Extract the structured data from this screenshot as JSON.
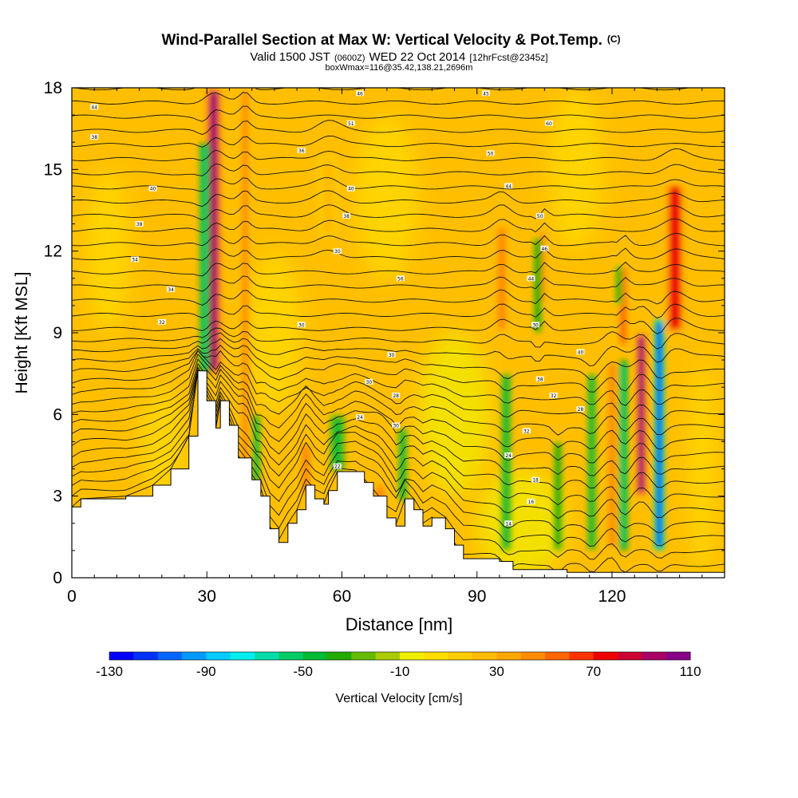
{
  "chart_data": {
    "type": "heatmap",
    "title": "Wind-Parallel Section at Max W: Vertical Velocity & Pot.Temp.",
    "title_suffix": "(C)",
    "subtitle_valid": "Valid 1500 JST",
    "subtitle_zulu": "(0600Z)",
    "subtitle_date": "WED 22 Oct 2014",
    "subtitle_fcst": "[12hrFcst@2345z]",
    "subtitle_box": "boxWmax=116@35.42,138.21,2696m",
    "xlabel": "Distance [nm]",
    "ylabel": "Height [Kft MSL]",
    "xlim": [
      0,
      145
    ],
    "ylim": [
      0,
      18
    ],
    "xticks": [
      0,
      30,
      60,
      90,
      120
    ],
    "yticks": [
      0,
      3,
      6,
      9,
      12,
      15,
      18
    ],
    "colorbar": {
      "label": "Vertical Velocity [cm/s]",
      "range": [
        -130,
        110
      ],
      "step": 10,
      "tick_values": [
        -130,
        -90,
        -50,
        -10,
        30,
        70,
        110
      ],
      "colors": [
        "#0000ff",
        "#0033ff",
        "#0066ff",
        "#0099ff",
        "#00ccff",
        "#00eeee",
        "#00ddaa",
        "#00cc66",
        "#00bb33",
        "#22aa00",
        "#66bb00",
        "#aacc00",
        "#eeee00",
        "#ffdd00",
        "#ffcc00",
        "#ffbb00",
        "#ffa500",
        "#ff8c00",
        "#ff6600",
        "#ff3300",
        "#ee0000",
        "#cc0033",
        "#aa0066",
        "#880088"
      ]
    },
    "terrain": [
      [
        0,
        2.6
      ],
      [
        2,
        2.9
      ],
      [
        12,
        3.0
      ],
      [
        18,
        3.4
      ],
      [
        22,
        4.0
      ],
      [
        26,
        5.2
      ],
      [
        28,
        7.6
      ],
      [
        30,
        6.5
      ],
      [
        32,
        5.5
      ],
      [
        33,
        6.5
      ],
      [
        35,
        5.6
      ],
      [
        37,
        4.4
      ],
      [
        40,
        3.6
      ],
      [
        42,
        3.0
      ],
      [
        44,
        1.8
      ],
      [
        46,
        1.3
      ],
      [
        48,
        2.0
      ],
      [
        50,
        2.5
      ],
      [
        52,
        3.4
      ],
      [
        54,
        2.9
      ],
      [
        56,
        2.7
      ],
      [
        57,
        3.2
      ],
      [
        59,
        3.9
      ],
      [
        63,
        3.9
      ],
      [
        65,
        3.5
      ],
      [
        67,
        3.0
      ],
      [
        70,
        2.2
      ],
      [
        72,
        1.9
      ],
      [
        74,
        2.9
      ],
      [
        76,
        2.5
      ],
      [
        78,
        1.9
      ],
      [
        80,
        2.2
      ],
      [
        83,
        1.8
      ],
      [
        85,
        1.2
      ],
      [
        87,
        0.7
      ],
      [
        95,
        0.6
      ],
      [
        98,
        0.3
      ],
      [
        110,
        0.2
      ],
      [
        145,
        0.2
      ]
    ],
    "updrafts": [
      {
        "x": 31.5,
        "y0": 7.5,
        "y1": 18,
        "w": 2.0,
        "value": 90
      },
      {
        "x": 38.5,
        "y0": 4.0,
        "y1": 18,
        "w": 1.2,
        "value": 40
      },
      {
        "x": 52.0,
        "y0": 3.0,
        "y1": 5.0,
        "w": 1.8,
        "value": 40
      },
      {
        "x": 57.0,
        "y0": 12.5,
        "y1": 15.5,
        "w": 2.5,
        "value": 25
      },
      {
        "x": 68.5,
        "y0": 2.0,
        "y1": 3.5,
        "w": 2.0,
        "value": 40
      },
      {
        "x": 95.5,
        "y0": 9.0,
        "y1": 13.0,
        "w": 1.8,
        "value": 45
      },
      {
        "x": 104.5,
        "y0": 10.0,
        "y1": 12.8,
        "w": 1.2,
        "value": 45
      },
      {
        "x": 120.0,
        "y0": 1.0,
        "y1": 8.0,
        "w": 1.5,
        "value": 40
      },
      {
        "x": 122.5,
        "y0": 8.5,
        "y1": 11.5,
        "w": 1.2,
        "value": 55
      },
      {
        "x": 126.5,
        "y0": 3.0,
        "y1": 9.0,
        "w": 1.5,
        "value": 90
      },
      {
        "x": 134.0,
        "y0": 9.0,
        "y1": 14.5,
        "w": 2.5,
        "value": 70
      }
    ],
    "downdrafts": [
      {
        "x": 29.5,
        "y0": 7.5,
        "y1": 16.0,
        "w": 1.3,
        "value": -60
      },
      {
        "x": 41.0,
        "y0": 3.5,
        "y1": 6.0,
        "w": 0.9,
        "value": -50
      },
      {
        "x": 59.0,
        "y0": 3.9,
        "y1": 6.0,
        "w": 2.0,
        "value": -45
      },
      {
        "x": 73.5,
        "y0": 2.8,
        "y1": 5.5,
        "w": 1.2,
        "value": -45
      },
      {
        "x": 96.5,
        "y0": 1.0,
        "y1": 7.5,
        "w": 1.3,
        "value": -50
      },
      {
        "x": 103.5,
        "y0": 9.0,
        "y1": 12.5,
        "w": 0.6,
        "value": -40
      },
      {
        "x": 108.0,
        "y0": 1.0,
        "y1": 5.0,
        "w": 1.0,
        "value": -40
      },
      {
        "x": 115.5,
        "y0": 1.0,
        "y1": 7.5,
        "w": 1.2,
        "value": -45
      },
      {
        "x": 122.5,
        "y0": 1.0,
        "y1": 8.0,
        "w": 1.2,
        "value": -55
      },
      {
        "x": 121.5,
        "y0": 10.0,
        "y1": 11.5,
        "w": 0.4,
        "value": -35
      },
      {
        "x": 130.5,
        "y0": 1.0,
        "y1": 9.5,
        "w": 1.3,
        "value": -110
      }
    ],
    "contour_labels": [
      {
        "x": 5,
        "y": 17.3,
        "text": "44"
      },
      {
        "x": 5,
        "y": 16.2,
        "text": "38"
      },
      {
        "x": 18,
        "y": 14.3,
        "text": "40"
      },
      {
        "x": 15,
        "y": 13.0,
        "text": "38"
      },
      {
        "x": 14,
        "y": 11.7,
        "text": "34"
      },
      {
        "x": 22,
        "y": 10.6,
        "text": "34"
      },
      {
        "x": 20,
        "y": 9.4,
        "text": "32"
      },
      {
        "x": 51,
        "y": 15.7,
        "text": "36"
      },
      {
        "x": 64,
        "y": 17.8,
        "text": "46"
      },
      {
        "x": 62,
        "y": 16.7,
        "text": "51"
      },
      {
        "x": 62,
        "y": 14.3,
        "text": "40"
      },
      {
        "x": 61,
        "y": 13.3,
        "text": "38"
      },
      {
        "x": 59,
        "y": 12.0,
        "text": "30"
      },
      {
        "x": 73,
        "y": 11.0,
        "text": "56"
      },
      {
        "x": 51,
        "y": 9.3,
        "text": "30"
      },
      {
        "x": 71,
        "y": 8.2,
        "text": "30"
      },
      {
        "x": 66,
        "y": 7.2,
        "text": "30"
      },
      {
        "x": 72,
        "y": 6.7,
        "text": "28"
      },
      {
        "x": 64,
        "y": 5.9,
        "text": "24"
      },
      {
        "x": 72,
        "y": 5.6,
        "text": "30"
      },
      {
        "x": 59,
        "y": 4.1,
        "text": "22"
      },
      {
        "x": 92,
        "y": 17.8,
        "text": "45"
      },
      {
        "x": 106,
        "y": 16.7,
        "text": "60"
      },
      {
        "x": 93,
        "y": 15.6,
        "text": "50"
      },
      {
        "x": 97,
        "y": 14.4,
        "text": "44"
      },
      {
        "x": 104,
        "y": 13.3,
        "text": "50"
      },
      {
        "x": 105,
        "y": 12.1,
        "text": "46"
      },
      {
        "x": 102,
        "y": 11.0,
        "text": "44"
      },
      {
        "x": 103,
        "y": 9.3,
        "text": "30"
      },
      {
        "x": 113,
        "y": 8.3,
        "text": "40"
      },
      {
        "x": 104,
        "y": 7.3,
        "text": "38"
      },
      {
        "x": 107,
        "y": 6.7,
        "text": "32"
      },
      {
        "x": 113,
        "y": 6.2,
        "text": "28"
      },
      {
        "x": 101,
        "y": 5.4,
        "text": "32"
      },
      {
        "x": 97,
        "y": 4.5,
        "text": "24"
      },
      {
        "x": 103,
        "y": 3.6,
        "text": "18"
      },
      {
        "x": 102,
        "y": 2.8,
        "text": "16"
      },
      {
        "x": 97,
        "y": 2.0,
        "text": "14"
      }
    ]
  }
}
